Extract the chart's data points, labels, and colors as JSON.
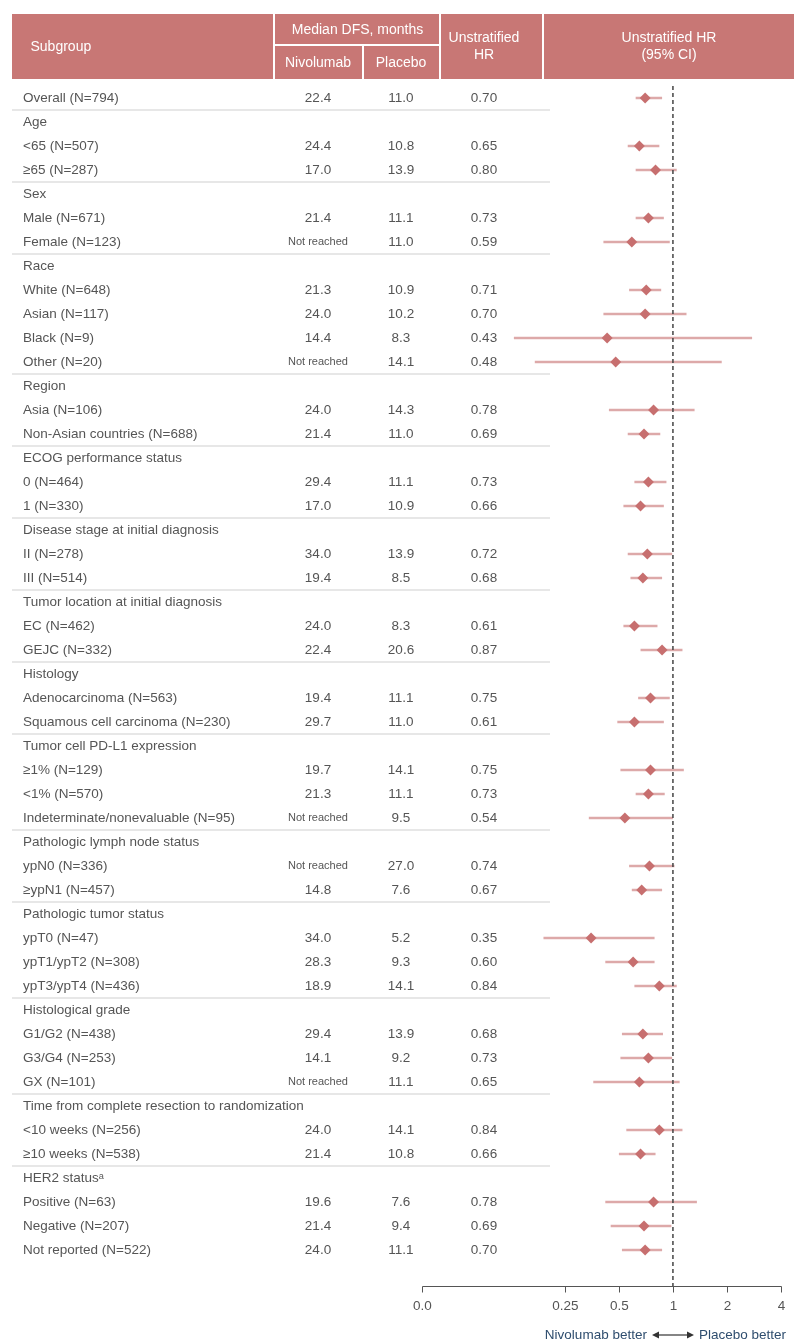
{
  "chart_data": [
    {
      "type": "heatmap",
      "xlabel": "Median DFS, months",
      "ylabel": "Subgroup",
      "categories": [
        "Nivolumab",
        "Placebo",
        "Unstratified HR"
      ],
      "y_categories": [
        "Overall (N=794)",
        "Age",
        "<65 (N=507)",
        "≥65 (N=287)",
        "Sex",
        "Male (N=671)",
        "Female (N=123)",
        "Race",
        "White (N=648)",
        "Asian (N=117)",
        "Black (N=9)",
        "Other (N=20)",
        "Region",
        "Asia (N=106)",
        "Non-Asian countries (N=688)",
        "ECOG performance status",
        "0 (N=464)",
        "1 (N=330)",
        "Disease stage at initial diagnosis",
        "II (N=278)",
        "III (N=514)",
        "Tumor location at initial diagnosis",
        "EC (N=462)",
        "GEJC (N=332)",
        "Histology",
        "Adenocarcinoma (N=563)",
        "Squamous cell carcinoma (N=230)",
        "Tumor cell PD-L1 expression",
        "≥1% (N=129)",
        "<1% (N=570)",
        "Indeterminate/nonevaluable (N=95)",
        "Pathologic lymph node status",
        "ypN0 (N=336)",
        "≥ypN1 (N=457)",
        "Pathologic tumor status",
        "ypT0 (N=47)",
        "ypT1/ypT2 (N=308)",
        "ypT3/ypT4 (N=436)",
        "Histological grade",
        "G1/G2 (N=438)",
        "G3/G4 (N=253)",
        "GX (N=101)",
        "Time from complete resection to randomization",
        "<10 weeks (N=256)",
        "≥10 weeks (N=538)",
        "HER2 statusᵃ",
        "Positive (N=63)",
        "Negative (N=207)",
        "Not reported (N=522)"
      ],
      "cells": [
        [
          22.4,
          11.0,
          0.7
        ],
        [
          null,
          null,
          null
        ],
        [
          24.4,
          10.8,
          0.65
        ],
        [
          17.0,
          13.9,
          0.8
        ],
        [
          null,
          null,
          null
        ],
        [
          21.4,
          11.1,
          0.73
        ],
        [
          null,
          11.0,
          0.59
        ],
        [
          null,
          null,
          null
        ],
        [
          21.3,
          10.9,
          0.71
        ],
        [
          24.0,
          10.2,
          0.7
        ],
        [
          14.4,
          8.3,
          0.43
        ],
        [
          null,
          14.1,
          0.48
        ],
        [
          null,
          null,
          null
        ],
        [
          24.0,
          14.3,
          0.78
        ],
        [
          21.4,
          11.0,
          0.69
        ],
        [
          null,
          null,
          null
        ],
        [
          29.4,
          11.1,
          0.73
        ],
        [
          17.0,
          10.9,
          0.66
        ],
        [
          null,
          null,
          null
        ],
        [
          34.0,
          13.9,
          0.72
        ],
        [
          19.4,
          8.5,
          0.68
        ],
        [
          null,
          null,
          null
        ],
        [
          24.0,
          8.3,
          0.61
        ],
        [
          22.4,
          20.6,
          0.87
        ],
        [
          null,
          null,
          null
        ],
        [
          19.4,
          11.1,
          0.75
        ],
        [
          29.7,
          11.0,
          0.61
        ],
        [
          null,
          null,
          null
        ],
        [
          19.7,
          14.1,
          0.75
        ],
        [
          21.3,
          11.1,
          0.73
        ],
        [
          null,
          9.5,
          0.54
        ],
        [
          null,
          null,
          null
        ],
        [
          null,
          27.0,
          0.74
        ],
        [
          14.8,
          7.6,
          0.67
        ],
        [
          null,
          null,
          null
        ],
        [
          34.0,
          5.2,
          0.35
        ],
        [
          28.3,
          9.3,
          0.6
        ],
        [
          18.9,
          14.1,
          0.84
        ],
        [
          null,
          null,
          null
        ],
        [
          29.4,
          13.9,
          0.68
        ],
        [
          14.1,
          9.2,
          0.73
        ],
        [
          null,
          11.1,
          0.65
        ],
        [
          null,
          null,
          null
        ],
        [
          24.0,
          14.1,
          0.84
        ],
        [
          21.4,
          10.8,
          0.66
        ],
        [
          null,
          null,
          null
        ],
        [
          19.6,
          7.6,
          0.78
        ],
        [
          21.4,
          9.4,
          0.69
        ],
        [
          24.0,
          11.1,
          0.7
        ]
      ],
      "cell_labels": [
        [
          "22.4",
          "11.0",
          "0.70"
        ],
        [
          null,
          null,
          null
        ],
        [
          "24.4",
          "10.8",
          "0.65"
        ],
        [
          "17.0",
          "13.9",
          "0.80"
        ],
        [
          null,
          null,
          null
        ],
        [
          "21.4",
          "11.1",
          "0.73"
        ],
        [
          "Not reached",
          "11.0",
          "0.59"
        ],
        [
          null,
          null,
          null
        ],
        [
          "21.3",
          "10.9",
          "0.71"
        ],
        [
          "24.0",
          "10.2",
          "0.70"
        ],
        [
          "14.4",
          "8.3",
          "0.43"
        ],
        [
          "Not reached",
          "14.1",
          "0.48"
        ],
        [
          null,
          null,
          null
        ],
        [
          "24.0",
          "14.3",
          "0.78"
        ],
        [
          "21.4",
          "11.0",
          "0.69"
        ],
        [
          null,
          null,
          null
        ],
        [
          "29.4",
          "11.1",
          "0.73"
        ],
        [
          "17.0",
          "10.9",
          "0.66"
        ],
        [
          null,
          null,
          null
        ],
        [
          "34.0",
          "13.9",
          "0.72"
        ],
        [
          "19.4",
          "8.5",
          "0.68"
        ],
        [
          null,
          null,
          null
        ],
        [
          "24.0",
          "8.3",
          "0.61"
        ],
        [
          "22.4",
          "20.6",
          "0.87"
        ],
        [
          null,
          null,
          null
        ],
        [
          "19.4",
          "11.1",
          "0.75"
        ],
        [
          "29.7",
          "11.0",
          "0.61"
        ],
        [
          null,
          null,
          null
        ],
        [
          "19.7",
          "14.1",
          "0.75"
        ],
        [
          "21.3",
          "11.1",
          "0.73"
        ],
        [
          "Not reached",
          "9.5",
          "0.54"
        ],
        [
          null,
          null,
          null
        ],
        [
          "Not reached",
          "27.0",
          "0.74"
        ],
        [
          "14.8",
          "7.6",
          "0.67"
        ],
        [
          null,
          null,
          null
        ],
        [
          "34.0",
          "5.2",
          "0.35"
        ],
        [
          "28.3",
          "9.3",
          "0.60"
        ],
        [
          "18.9",
          "14.1",
          "0.84"
        ],
        [
          null,
          null,
          null
        ],
        [
          "29.4",
          "13.9",
          "0.68"
        ],
        [
          "14.1",
          "9.2",
          "0.73"
        ],
        [
          "Not reached",
          "11.1",
          "0.65"
        ],
        [
          null,
          null,
          null
        ],
        [
          "24.0",
          "14.1",
          "0.84"
        ],
        [
          "21.4",
          "10.8",
          "0.66"
        ],
        [
          null,
          null,
          null
        ],
        [
          "19.6",
          "7.6",
          "0.78"
        ],
        [
          "21.4",
          "9.4",
          "0.69"
        ],
        [
          "24.0",
          "11.1",
          "0.70"
        ]
      ]
    },
    {
      "type": "scatter",
      "title": "Unstratified HR (95% CI)",
      "orientation": "horizontal",
      "log": "x",
      "marker": "diamond",
      "categories": [
        null,
        null,
        null,
        null,
        null,
        null,
        null,
        null,
        null,
        null,
        null,
        null,
        null,
        null,
        null,
        null,
        null,
        null,
        null,
        null,
        null,
        null,
        null,
        null,
        null,
        null,
        null,
        null,
        null,
        null,
        null,
        null,
        null,
        null,
        null,
        null,
        null,
        null,
        null,
        null,
        null,
        null,
        null,
        null,
        null,
        null,
        null,
        null,
        null
      ],
      "series": [
        {
          "color": "#c76f6f",
          "values": [
            0.7,
            null,
            0.65,
            0.8,
            null,
            0.73,
            0.59,
            null,
            0.71,
            0.7,
            0.43,
            0.48,
            null,
            0.78,
            0.69,
            null,
            0.73,
            0.66,
            null,
            0.72,
            0.68,
            null,
            0.61,
            0.87,
            null,
            0.75,
            0.61,
            null,
            0.75,
            0.73,
            0.54,
            null,
            0.74,
            0.67,
            null,
            0.35,
            0.6,
            0.84,
            null,
            0.68,
            0.73,
            0.65,
            null,
            0.84,
            0.66,
            null,
            0.78,
            0.69,
            0.7
          ],
          "errors": [
            [
              0.62,
              0.87
            ],
            null,
            [
              0.56,
              0.84
            ],
            [
              0.62,
              1.05
            ],
            null,
            [
              0.62,
              0.89
            ],
            [
              0.41,
              0.96
            ],
            null,
            [
              0.57,
              0.86
            ],
            [
              0.41,
              1.19
            ],
            [
              0.13,
              2.76
            ],
            [
              0.17,
              1.87
            ],
            null,
            [
              0.44,
              1.32
            ],
            [
              0.56,
              0.85
            ],
            null,
            [
              0.61,
              0.92
            ],
            [
              0.53,
              0.89
            ],
            null,
            [
              0.56,
              0.99
            ],
            [
              0.58,
              0.87
            ],
            null,
            [
              0.53,
              0.82
            ],
            [
              0.66,
              1.13
            ],
            null,
            [
              0.64,
              0.96
            ],
            [
              0.49,
              0.89
            ],
            null,
            [
              0.51,
              1.15
            ],
            [
              0.62,
              0.9
            ],
            [
              0.34,
              1.0
            ],
            null,
            [
              0.57,
              1.02
            ],
            [
              0.59,
              0.87
            ],
            null,
            [
              0.19,
              0.79
            ],
            [
              0.42,
              0.79
            ],
            [
              0.61,
              1.05
            ],
            null,
            [
              0.52,
              0.88
            ],
            [
              0.51,
              0.99
            ],
            [
              0.36,
              1.09
            ],
            null,
            [
              0.55,
              1.13
            ],
            [
              0.5,
              0.8
            ],
            null,
            [
              0.42,
              1.36
            ],
            [
              0.45,
              0.98
            ],
            [
              0.52,
              0.87
            ]
          ]
        }
      ],
      "xlim": [
        0.04,
        4
      ],
      "xticks": [
        {
          "value": 0.04,
          "label": "0.0"
        },
        0.25,
        0.5,
        1,
        2,
        4
      ],
      "ref_lines": [
        {
          "axis": "x",
          "value": 1,
          "color": "#444444",
          "line_style": "dashed"
        }
      ],
      "annotations": [
        "Nivolumab better",
        "Placebo better"
      ]
    }
  ]
}
